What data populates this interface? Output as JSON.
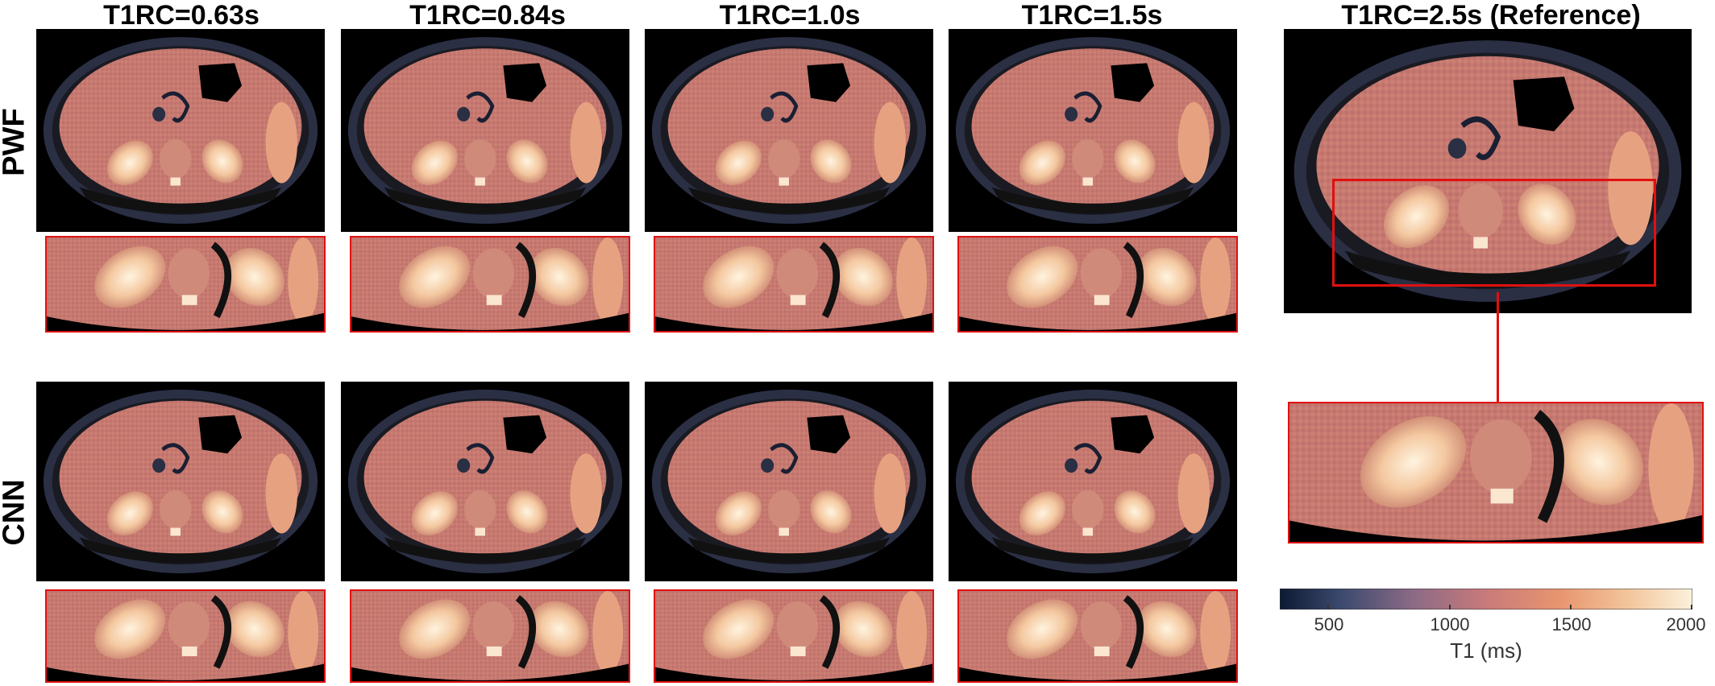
{
  "columns": [
    {
      "title": "T1RC=0.63s"
    },
    {
      "title": "T1RC=0.84s"
    },
    {
      "title": "T1RC=1.0s"
    },
    {
      "title": "T1RC=1.5s"
    },
    {
      "title": "T1RC=2.5s (Reference)"
    }
  ],
  "rows": [
    {
      "label": "PWF"
    },
    {
      "label": "CNN"
    }
  ],
  "colorbar": {
    "label": "T1 (ms)",
    "ticks": [
      "500",
      "1000",
      "1500",
      "2000"
    ],
    "range": [
      300,
      2000
    ],
    "colors": [
      "#0d1a33",
      "#3c4a6e",
      "#8a6a86",
      "#c97a7a",
      "#e8956f",
      "#f2c49a",
      "#fbf1dc"
    ]
  },
  "colors": {
    "accent_box": "#e01010",
    "tissue_liver": "#c4786f",
    "tissue_kidney": "#f0c8a8",
    "background": "#000000"
  }
}
